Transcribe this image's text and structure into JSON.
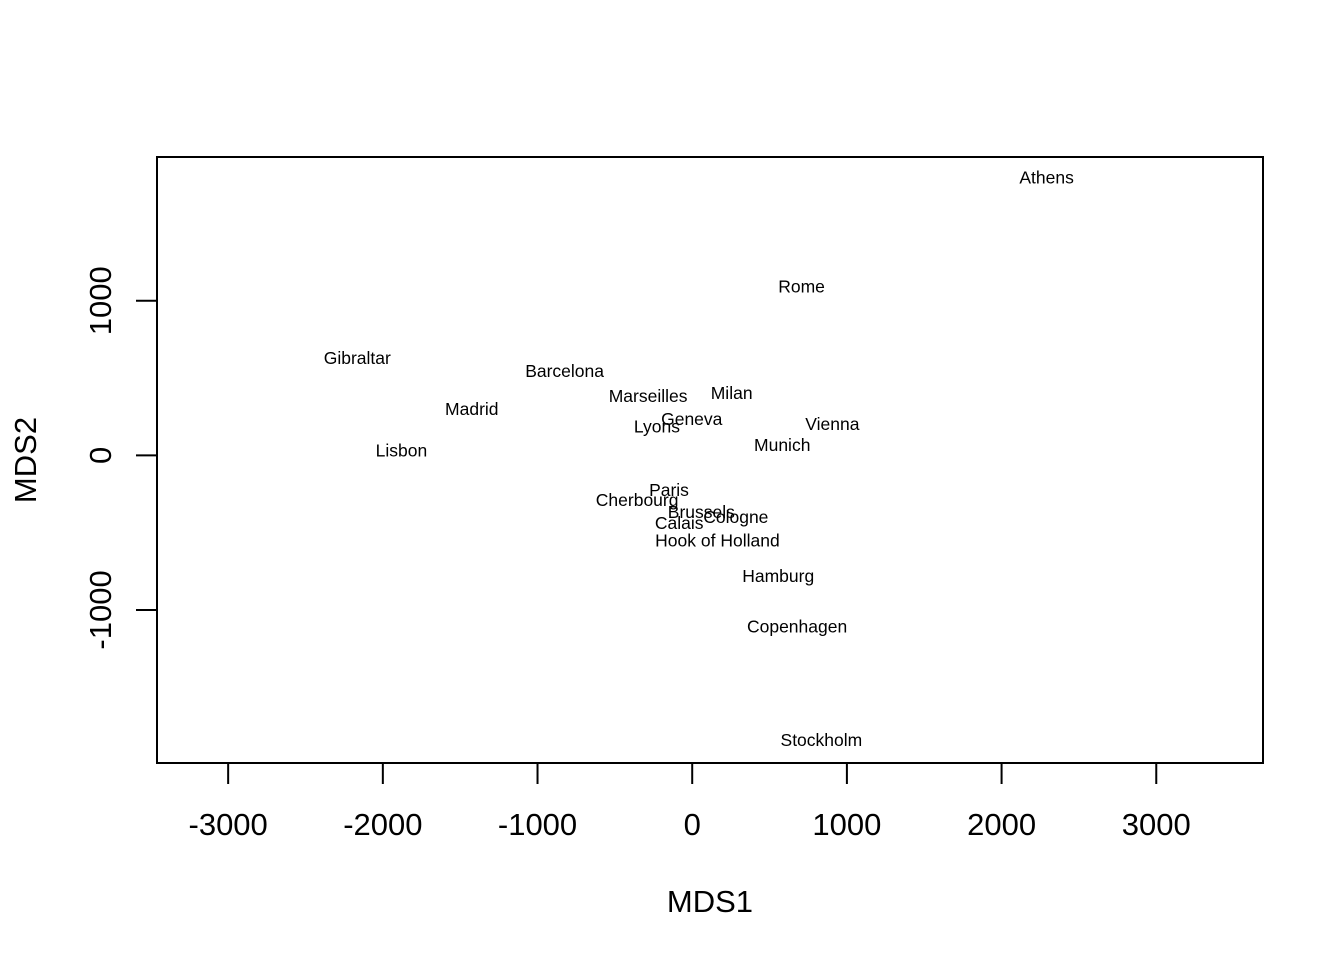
{
  "chart_data": {
    "type": "scatter",
    "title": "",
    "xlabel": "MDS1",
    "ylabel": "MDS2",
    "xlim": [
      -3460,
      3690
    ],
    "ylim": [
      -1990,
      1930
    ],
    "x_ticks": [
      -3000,
      -2000,
      -1000,
      0,
      1000,
      2000,
      3000
    ],
    "x_tick_labels": [
      "-3000",
      "-2000",
      "-1000",
      "0",
      "1000",
      "2000",
      "3000"
    ],
    "y_ticks": [
      -1000,
      0,
      1000
    ],
    "y_tick_labels": [
      "-1000",
      "0",
      "1000"
    ],
    "grid": false,
    "markers": "text labels only",
    "points": [
      {
        "label": "Athens",
        "x": 2291,
        "y": 1799
      },
      {
        "label": "Barcelona",
        "x": -825,
        "y": 547
      },
      {
        "label": "Brussels",
        "x": 59,
        "y": -366
      },
      {
        "label": "Calais",
        "x": -84,
        "y": -437
      },
      {
        "label": "Cherbourg",
        "x": -356,
        "y": -290
      },
      {
        "label": "Cologne",
        "x": 282,
        "y": -399
      },
      {
        "label": "Copenhagen",
        "x": 678,
        "y": -1106
      },
      {
        "label": "Geneva",
        "x": -3,
        "y": 235
      },
      {
        "label": "Gibraltar",
        "x": -2165,
        "y": 629
      },
      {
        "label": "Hamburg",
        "x": 556,
        "y": -781
      },
      {
        "label": "Hook of Holland",
        "x": 163,
        "y": -552
      },
      {
        "label": "Lisbon",
        "x": -1880,
        "y": 30
      },
      {
        "label": "Lyons",
        "x": -228,
        "y": 187
      },
      {
        "label": "Madrid",
        "x": -1425,
        "y": 300
      },
      {
        "label": "Marseilles",
        "x": -285,
        "y": 385
      },
      {
        "label": "Milan",
        "x": 255,
        "y": 404
      },
      {
        "label": "Munich",
        "x": 582,
        "y": 68
      },
      {
        "label": "Paris",
        "x": -150,
        "y": -223
      },
      {
        "label": "Rome",
        "x": 707,
        "y": 1093
      },
      {
        "label": "Stockholm",
        "x": 835,
        "y": -1841
      },
      {
        "label": "Vienna",
        "x": 906,
        "y": 202
      }
    ]
  }
}
